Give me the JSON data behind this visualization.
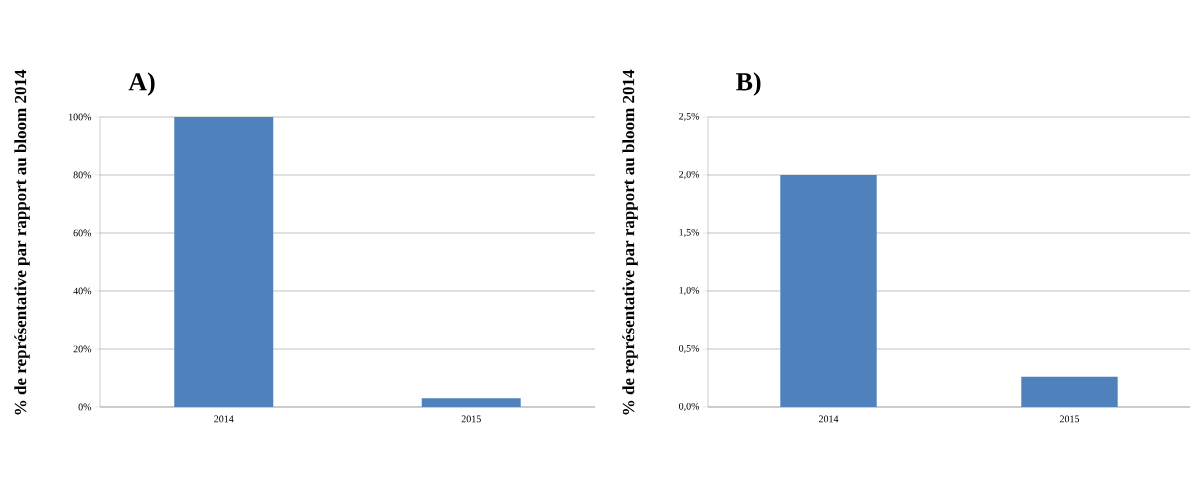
{
  "chart_data": [
    {
      "type": "bar",
      "title": "A)",
      "ylabel": "% de représentative par rapport au bloom 2014",
      "categories": [
        "2014",
        "2015"
      ],
      "values": [
        100,
        3
      ],
      "color": "#4f81bd",
      "ylim": [
        0,
        100
      ],
      "yticks": [
        {
          "value": 0,
          "label": "0%"
        },
        {
          "value": 20,
          "label": "20%"
        },
        {
          "value": 40,
          "label": "40%"
        },
        {
          "value": 60,
          "label": "60%"
        },
        {
          "value": 80,
          "label": "80%"
        },
        {
          "value": 100,
          "label": "100%"
        }
      ],
      "grid": "y"
    },
    {
      "type": "bar",
      "title": "B)",
      "ylabel": "% de représentative par rapport au bloom 2014",
      "categories": [
        "2014",
        "2015"
      ],
      "values": [
        2.0,
        0.26
      ],
      "color": "#4f81bd",
      "ylim": [
        0,
        2.5
      ],
      "yticks": [
        {
          "value": 0,
          "label": "0,0%"
        },
        {
          "value": 0.5,
          "label": "0,5%"
        },
        {
          "value": 1.0,
          "label": "1,0%"
        },
        {
          "value": 1.5,
          "label": "1,5%"
        },
        {
          "value": 2.0,
          "label": "2,0%"
        },
        {
          "value": 2.5,
          "label": "2,5%"
        }
      ],
      "grid": "y"
    }
  ]
}
